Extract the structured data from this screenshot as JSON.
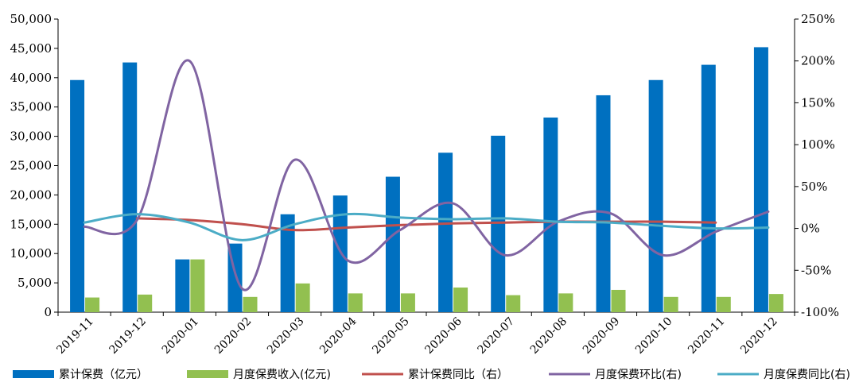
{
  "chart_data": {
    "type": "bar",
    "categories": [
      "2019-11",
      "2019-12",
      "2020-01",
      "2020-02",
      "2020-03",
      "2020-04",
      "2020-05",
      "2020-06",
      "2020-07",
      "2020-08",
      "2020-09",
      "2020-10",
      "2020-11",
      "2020-12"
    ],
    "ylim_left": [
      0,
      50000
    ],
    "ylim_right": [
      -100,
      250
    ],
    "left_ticks": [
      "0",
      "5,000",
      "10,000",
      "15,000",
      "20,000",
      "25,000",
      "30,000",
      "35,000",
      "40,000",
      "45,000",
      "50,000"
    ],
    "right_ticks": [
      "-100%",
      "-50%",
      "0%",
      "50%",
      "100%",
      "150%",
      "200%",
      "250%"
    ],
    "legend_position": "bottom",
    "series": [
      {
        "name": "累计保费（亿元）",
        "kind": "bar",
        "axis": "left",
        "color": "#0070c0",
        "values": [
          39600,
          42600,
          9000,
          11700,
          16700,
          19900,
          23100,
          27200,
          30100,
          33200,
          37000,
          39600,
          42200,
          45200
        ]
      },
      {
        "name": "月度保费收入(亿元)",
        "kind": "bar",
        "axis": "left",
        "color": "#92c050",
        "values": [
          2500,
          3000,
          9000,
          2600,
          4900,
          3200,
          3200,
          4200,
          2900,
          3200,
          3800,
          2600,
          2600,
          3100
        ]
      },
      {
        "name": "累计保费同比（右）",
        "kind": "line",
        "axis": "right",
        "color": "#c0504d",
        "values": [
          null,
          12,
          10,
          5,
          -2,
          1,
          4,
          6,
          7,
          8,
          8,
          8,
          7,
          null
        ]
      },
      {
        "name": "月度保费环比(右)",
        "kind": "line",
        "axis": "right",
        "color": "#8064a2",
        "values": [
          2,
          10,
          200,
          -72,
          82,
          -38,
          -2,
          30,
          -32,
          8,
          18,
          -32,
          -4,
          20
        ]
      },
      {
        "name": "月度保费同比(右)",
        "kind": "line",
        "axis": "right",
        "color": "#4bacc6",
        "values": [
          7,
          17,
          7,
          -14,
          5,
          17,
          13,
          11,
          12,
          8,
          7,
          3,
          0,
          1
        ]
      }
    ]
  }
}
